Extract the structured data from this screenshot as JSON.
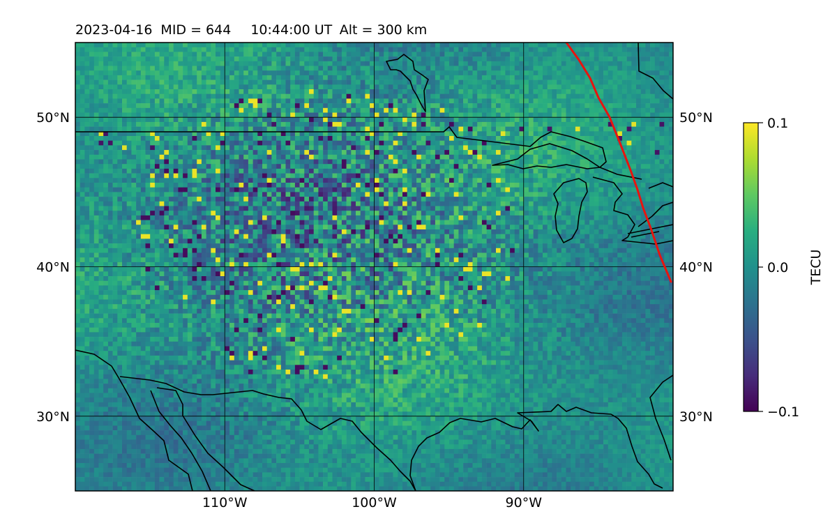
{
  "title": {
    "date": "2023-04-16",
    "mid": "MID = 644",
    "time": "10:44:00  UT",
    "alt": "Alt = 300 km"
  },
  "map": {
    "lon_range": [
      -120,
      -80
    ],
    "lat_range": [
      25,
      55
    ],
    "lon_ticks": [
      {
        "value": -110,
        "label": "110°W"
      },
      {
        "value": -100,
        "label": "100°W"
      },
      {
        "value": -90,
        "label": "90°W"
      }
    ],
    "lat_ticks": [
      {
        "value": 30,
        "label": "30°N"
      },
      {
        "value": 40,
        "label": "40°N"
      },
      {
        "value": 50,
        "label": "50°N"
      }
    ],
    "gridlines": true,
    "terminator_color": "#e8140f",
    "coastline_color": "#000000",
    "colormap": "viridis"
  },
  "colorbar": {
    "label": "TECU",
    "range": [
      -0.1,
      0.1
    ],
    "ticks": [
      {
        "value": 0.1,
        "label": "0.1"
      },
      {
        "value": 0.0,
        "label": "0.0"
      },
      {
        "value": -0.1,
        "label": "−0.1"
      }
    ]
  }
}
